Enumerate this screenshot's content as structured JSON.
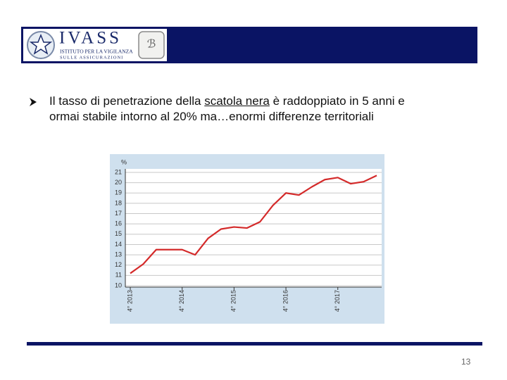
{
  "header": {
    "logo_title": "IVASS",
    "logo_line1": "ISTITUTO PER LA VIGILANZA",
    "logo_line2": "SULLE ASSICURAZIONI"
  },
  "bullet": {
    "line1": [
      "Il tasso di penetrazione della",
      "scatola nera",
      "è raddoppiato in 5 anni e"
    ],
    "line2": "ormai stabile intorno al 20% ma…enormi differenze territoriali"
  },
  "chart_data": {
    "type": "line",
    "y_label": "%",
    "categories": [
      "4° 2013",
      null,
      null,
      null,
      "4° 2014",
      null,
      null,
      null,
      "4° 2015",
      null,
      null,
      null,
      "4° 2016",
      null,
      null,
      null,
      "4° 2017",
      null,
      null,
      null
    ],
    "values": [
      11.2,
      12.1,
      13.5,
      13.5,
      13.5,
      13.0,
      14.6,
      15.5,
      15.7,
      15.6,
      16.2,
      17.8,
      19.0,
      18.8,
      19.6,
      20.3,
      20.5,
      19.9,
      20.1,
      20.7
    ],
    "color": "#d42a2a",
    "ylim": [
      10,
      21
    ],
    "yticks": [
      10,
      11,
      12,
      13,
      14,
      15,
      16,
      17,
      18,
      19,
      20,
      21
    ],
    "grid": true
  },
  "page_number": "13"
}
